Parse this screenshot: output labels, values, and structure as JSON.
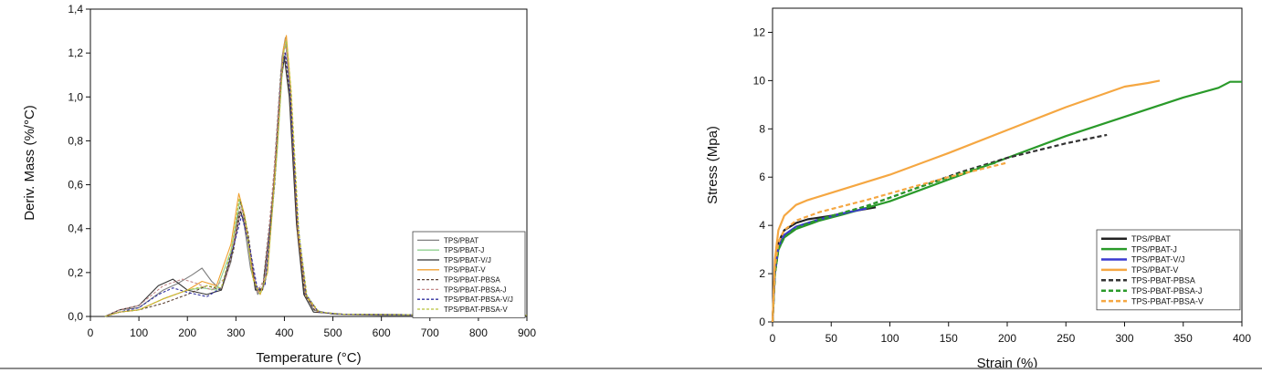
{
  "chart_data": [
    {
      "type": "line",
      "xlabel": "Temperature (°C)",
      "ylabel": "Deriv. Mass (%/°C)",
      "xlim": [
        0,
        900
      ],
      "ylim": [
        0,
        1.4
      ],
      "xticks": [
        "0",
        "100",
        "200",
        "300",
        "400",
        "500",
        "600",
        "700",
        "800",
        "900"
      ],
      "yticks": [
        "0,0",
        "0,2",
        "0,4",
        "0,6",
        "0,8",
        "1,0",
        "1,2",
        "1,4"
      ],
      "legend_position": "right",
      "grid": false,
      "series": [
        {
          "name": "TPS/PBAT",
          "color": "#7f7f7f",
          "dash": "solid",
          "x": [
            30,
            60,
            100,
            150,
            180,
            210,
            230,
            250,
            270,
            290,
            305,
            315,
            330,
            345,
            360,
            380,
            395,
            402,
            410,
            425,
            440,
            460,
            500,
            600,
            900
          ],
          "y": [
            0.0,
            0.03,
            0.04,
            0.12,
            0.15,
            0.19,
            0.22,
            0.16,
            0.12,
            0.25,
            0.47,
            0.45,
            0.22,
            0.1,
            0.15,
            0.65,
            1.18,
            1.27,
            1.05,
            0.45,
            0.12,
            0.03,
            0.01,
            0.005,
            0.005
          ]
        },
        {
          "name": "TPS/PBAT-J",
          "color": "#8fd18f",
          "dash": "solid",
          "x": [
            30,
            60,
            100,
            150,
            200,
            230,
            260,
            290,
            308,
            318,
            335,
            350,
            365,
            385,
            398,
            404,
            412,
            428,
            445,
            470,
            520,
            900
          ],
          "y": [
            0.0,
            0.02,
            0.03,
            0.08,
            0.12,
            0.13,
            0.12,
            0.3,
            0.53,
            0.44,
            0.18,
            0.1,
            0.2,
            0.75,
            1.2,
            1.26,
            1.05,
            0.4,
            0.1,
            0.02,
            0.01,
            0.005
          ]
        },
        {
          "name": "TPS/PBAT-V/J",
          "color": "#333333",
          "dash": "solid",
          "x": [
            30,
            60,
            100,
            140,
            170,
            200,
            240,
            270,
            295,
            310,
            325,
            340,
            355,
            375,
            392,
            400,
            410,
            425,
            440,
            460,
            520,
            900
          ],
          "y": [
            0.0,
            0.03,
            0.05,
            0.14,
            0.17,
            0.12,
            0.1,
            0.12,
            0.32,
            0.48,
            0.36,
            0.12,
            0.12,
            0.5,
            1.05,
            1.18,
            1.0,
            0.42,
            0.1,
            0.02,
            0.01,
            0.005
          ]
        },
        {
          "name": "TPS/PBAT-V",
          "color": "#f0a030",
          "dash": "solid",
          "x": [
            30,
            60,
            100,
            150,
            200,
            230,
            260,
            290,
            306,
            318,
            335,
            350,
            365,
            385,
            398,
            404,
            413,
            428,
            445,
            470,
            520,
            900
          ],
          "y": [
            0.0,
            0.02,
            0.03,
            0.08,
            0.12,
            0.16,
            0.14,
            0.33,
            0.56,
            0.46,
            0.18,
            0.1,
            0.2,
            0.78,
            1.22,
            1.28,
            1.04,
            0.38,
            0.09,
            0.02,
            0.01,
            0.005
          ]
        },
        {
          "name": "TPS/PBAT-PBSA",
          "color": "#5a4030",
          "dash": "dash",
          "x": [
            30,
            60,
            100,
            150,
            200,
            240,
            270,
            295,
            310,
            325,
            340,
            355,
            375,
            393,
            401,
            411,
            426,
            442,
            465,
            520,
            900
          ],
          "y": [
            0.0,
            0.02,
            0.03,
            0.06,
            0.1,
            0.14,
            0.12,
            0.3,
            0.52,
            0.38,
            0.14,
            0.12,
            0.55,
            1.12,
            1.2,
            1.0,
            0.4,
            0.1,
            0.02,
            0.01,
            0.005
          ]
        },
        {
          "name": "TPS/PBAT-PBSA-J",
          "color": "#c58a8a",
          "dash": "dash",
          "x": [
            30,
            60,
            100,
            150,
            190,
            220,
            250,
            280,
            300,
            312,
            328,
            345,
            360,
            380,
            396,
            403,
            412,
            428,
            445,
            470,
            520,
            900
          ],
          "y": [
            0.0,
            0.03,
            0.05,
            0.14,
            0.17,
            0.15,
            0.12,
            0.18,
            0.38,
            0.5,
            0.3,
            0.11,
            0.18,
            0.7,
            1.18,
            1.24,
            1.02,
            0.4,
            0.1,
            0.02,
            0.01,
            0.005
          ]
        },
        {
          "name": "TPS/PBAT-PBSA-V/J",
          "color": "#3030a0",
          "dash": "dash",
          "x": [
            30,
            60,
            100,
            140,
            170,
            200,
            240,
            270,
            295,
            312,
            328,
            345,
            360,
            380,
            395,
            402,
            412,
            428,
            445,
            470,
            520,
            900
          ],
          "y": [
            0.0,
            0.02,
            0.04,
            0.1,
            0.13,
            0.11,
            0.09,
            0.13,
            0.32,
            0.46,
            0.32,
            0.12,
            0.14,
            0.6,
            1.12,
            1.2,
            1.02,
            0.42,
            0.1,
            0.02,
            0.01,
            0.005
          ]
        },
        {
          "name": "TPS/PBAT-PBSA-V",
          "color": "#b8c23a",
          "dash": "dash",
          "x": [
            30,
            60,
            100,
            150,
            200,
            240,
            270,
            292,
            307,
            320,
            335,
            350,
            365,
            385,
            398,
            405,
            414,
            430,
            447,
            472,
            520,
            900
          ],
          "y": [
            0.0,
            0.02,
            0.03,
            0.08,
            0.12,
            0.14,
            0.13,
            0.32,
            0.54,
            0.44,
            0.17,
            0.1,
            0.2,
            0.76,
            1.2,
            1.25,
            1.03,
            0.38,
            0.09,
            0.02,
            0.01,
            0.005
          ]
        }
      ]
    },
    {
      "type": "line",
      "xlabel": "Strain (%)",
      "ylabel": "Stress (Mpa)",
      "xlim": [
        0,
        400
      ],
      "ylim": [
        0,
        13
      ],
      "xticks": [
        "0",
        "50",
        "100",
        "150",
        "200",
        "250",
        "300",
        "350",
        "400"
      ],
      "yticks": [
        "0",
        "2",
        "4",
        "6",
        "8",
        "10",
        "12"
      ],
      "legend_position": "bottom-right",
      "grid": false,
      "series": [
        {
          "name": "TPS/PBAT",
          "color": "#222222",
          "dash": "solid",
          "x": [
            0,
            2,
            5,
            10,
            20,
            30,
            50,
            70,
            88
          ],
          "y": [
            0,
            2.2,
            3.3,
            3.8,
            4.1,
            4.25,
            4.4,
            4.6,
            4.75
          ]
        },
        {
          "name": "TPS/PBAT-J",
          "color": "#2a9a2a",
          "dash": "solid",
          "x": [
            0,
            2,
            5,
            10,
            20,
            40,
            60,
            100,
            150,
            200,
            250,
            300,
            350,
            380,
            390,
            400
          ],
          "y": [
            0,
            2.0,
            3.0,
            3.5,
            3.85,
            4.2,
            4.45,
            5.0,
            5.9,
            6.8,
            7.7,
            8.5,
            9.3,
            9.7,
            9.95,
            9.95
          ]
        },
        {
          "name": "TPS/PBAT-V/J",
          "color": "#3a3ad0",
          "dash": "solid",
          "x": [
            0,
            2,
            5,
            10,
            20,
            40,
            60,
            80
          ],
          "y": [
            0,
            2.1,
            3.1,
            3.6,
            3.95,
            4.25,
            4.5,
            4.7
          ]
        },
        {
          "name": "TPS/PBAT-V",
          "color": "#f5a742",
          "dash": "solid",
          "x": [
            0,
            2,
            5,
            10,
            20,
            30,
            50,
            100,
            150,
            200,
            250,
            300,
            320,
            330
          ],
          "y": [
            0,
            2.6,
            3.8,
            4.4,
            4.85,
            5.05,
            5.35,
            6.1,
            7.0,
            7.95,
            8.9,
            9.75,
            9.9,
            10.0
          ]
        },
        {
          "name": "TPS-PBAT-PBSA",
          "color": "#333333",
          "dash": "dash",
          "x": [
            0,
            2,
            5,
            10,
            20,
            40,
            80,
            120,
            160,
            200,
            250,
            285
          ],
          "y": [
            0,
            2.0,
            3.0,
            3.5,
            3.9,
            4.25,
            4.8,
            5.5,
            6.2,
            6.8,
            7.4,
            7.75
          ]
        },
        {
          "name": "TPS-PBAT-PBSA-J",
          "color": "#2a9a2a",
          "dash": "dash",
          "x": [
            0,
            2,
            5,
            10,
            20,
            40,
            80,
            120,
            160,
            190
          ],
          "y": [
            0,
            2.0,
            3.0,
            3.5,
            3.9,
            4.25,
            4.8,
            5.5,
            6.15,
            6.6
          ]
        },
        {
          "name": "TPS-PBAT-PBSA-V",
          "color": "#f5a742",
          "dash": "dash",
          "x": [
            0,
            2,
            5,
            10,
            20,
            40,
            80,
            120,
            150,
            200
          ],
          "y": [
            0,
            2.3,
            3.3,
            3.8,
            4.2,
            4.55,
            5.05,
            5.6,
            6.0,
            6.6
          ]
        }
      ]
    }
  ]
}
